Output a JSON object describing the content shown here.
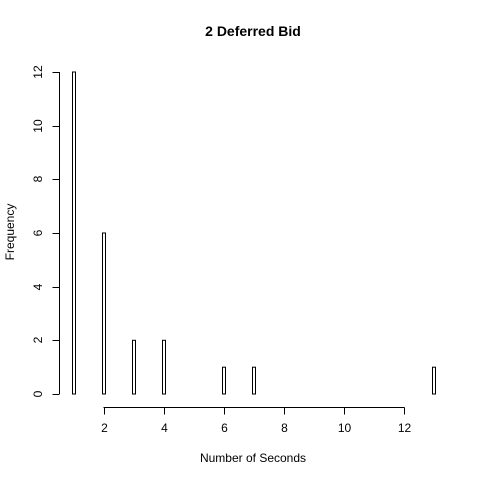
{
  "chart_data": {
    "type": "bar",
    "title": "2 Deferred Bid",
    "xlabel": "Number of Seconds",
    "ylabel": "Frequency",
    "x": [
      1,
      2,
      3,
      4,
      6,
      7,
      13
    ],
    "values": [
      12,
      6,
      2,
      2,
      1,
      1,
      1
    ],
    "xlim": [
      1,
      13
    ],
    "ylim": [
      0,
      12
    ],
    "xticks": [
      2,
      4,
      6,
      8,
      10,
      12
    ],
    "yticks": [
      0,
      2,
      4,
      6,
      8,
      10,
      12
    ],
    "grid": false,
    "colors": {
      "bar_fill": "#ffffff",
      "bar_stroke": "#000000"
    }
  }
}
